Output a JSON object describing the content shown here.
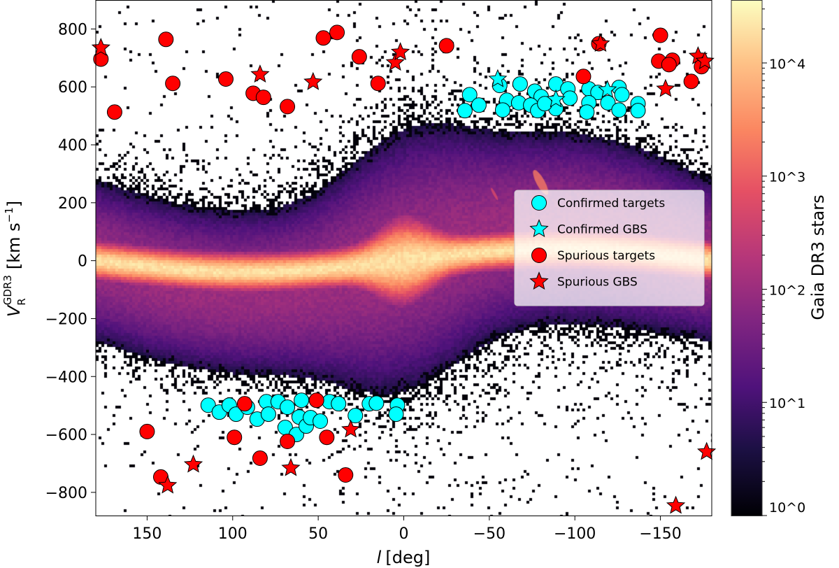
{
  "chart_data": {
    "type": "scatter",
    "background": "heatmap (2D histogram of Gaia DR3 stars, log color scale, magma colormap)",
    "xlabel": "l [deg]",
    "ylabel": "V_R^GDR3 [km s^-1]",
    "xlim": [
      180,
      -180
    ],
    "ylim": [
      -880,
      900
    ],
    "xticks": [
      150,
      100,
      50,
      0,
      -50,
      -100,
      -150
    ],
    "xtick_labels": [
      "150",
      "100",
      "50",
      "0",
      "−50",
      "−100",
      "−150"
    ],
    "yticks": [
      800,
      600,
      400,
      200,
      0,
      -200,
      -400,
      -600,
      -800
    ],
    "ytick_labels": [
      "800",
      "600",
      "400",
      "200",
      "0",
      "−200",
      "−400",
      "−600",
      "−800"
    ],
    "colorbar": {
      "label": "Gaia DR3 stars",
      "scale": "log",
      "range": [
        1,
        36000
      ],
      "ticks": [
        1,
        10,
        100,
        1000,
        10000
      ],
      "tick_labels": [
        "10^0",
        "10^1",
        "10^2",
        "10^3",
        "10^4"
      ],
      "colormap": "magma"
    },
    "legend": {
      "placement": "center-right",
      "entries": [
        "Confirmed targets",
        "Confirmed GBS",
        "Spurious targets",
        "Spurious GBS"
      ]
    },
    "series": [
      {
        "name": "Confirmed targets",
        "marker": "circle",
        "color": "#00ffff",
        "points": [
          [
            -38.5,
            573
          ],
          [
            -35.7,
            518
          ],
          [
            -43.9,
            537
          ],
          [
            -56.1,
            605
          ],
          [
            -68,
            610
          ],
          [
            -60.2,
            554
          ],
          [
            -57.8,
            520
          ],
          [
            -67.2,
            545
          ],
          [
            -76.6,
            585
          ],
          [
            -80.3,
            566
          ],
          [
            -74.2,
            537
          ],
          [
            -78.3,
            518
          ],
          [
            -88.9,
            610
          ],
          [
            -95.9,
            593
          ],
          [
            -97.1,
            561
          ],
          [
            -88.9,
            525
          ],
          [
            -108.2,
            593
          ],
          [
            -113.5,
            581
          ],
          [
            -108.2,
            545
          ],
          [
            -107,
            513
          ],
          [
            -119.3,
            545
          ],
          [
            -125.8,
            598
          ],
          [
            -127.5,
            573
          ],
          [
            -125.8,
            520
          ],
          [
            -136.9,
            542
          ],
          [
            -136.9,
            518
          ],
          [
            -82.4,
            542
          ],
          [
            114.3,
            -499
          ],
          [
            107.8,
            -523
          ],
          [
            102,
            -499
          ],
          [
            98,
            -530
          ],
          [
            91.4,
            -506
          ],
          [
            85.7,
            -547
          ],
          [
            80.3,
            -487
          ],
          [
            79.1,
            -530
          ],
          [
            73.4,
            -487
          ],
          [
            68,
            -506
          ],
          [
            69.3,
            -576
          ],
          [
            61.1,
            -540
          ],
          [
            59.8,
            -482
          ],
          [
            62.7,
            -600
          ],
          [
            57,
            -571
          ],
          [
            54.5,
            -542
          ],
          [
            48.8,
            -554
          ],
          [
            43.4,
            -487
          ],
          [
            38.1,
            -494
          ],
          [
            28.3,
            -535
          ],
          [
            20.1,
            -494
          ],
          [
            16,
            -492
          ],
          [
            3.7,
            -499
          ],
          [
            4.5,
            -530
          ]
        ]
      },
      {
        "name": "Confirmed GBS",
        "marker": "star",
        "color": "#00ffff",
        "points": [
          [
            -54.9,
            627
          ],
          [
            -88.9,
            557
          ],
          [
            -119,
            590
          ]
        ]
      },
      {
        "name": "Spurious targets",
        "marker": "circle",
        "color": "#ff0000",
        "points": [
          [
            177,
            696
          ],
          [
            139,
            764
          ],
          [
            135,
            612
          ],
          [
            169,
            513
          ],
          [
            104,
            627
          ],
          [
            88,
            578
          ],
          [
            82,
            564
          ],
          [
            68,
            532
          ],
          [
            47,
            769
          ],
          [
            39,
            788
          ],
          [
            26,
            704
          ],
          [
            15,
            612
          ],
          [
            -25,
            742
          ],
          [
            -105,
            636
          ],
          [
            -114,
            749
          ],
          [
            -150,
            778
          ],
          [
            -149,
            689
          ],
          [
            -157,
            692
          ],
          [
            -155,
            677
          ],
          [
            -168,
            619
          ],
          [
            -174,
            670
          ],
          [
            150,
            -590
          ],
          [
            99,
            -610
          ],
          [
            93,
            -494
          ],
          [
            84,
            -682
          ],
          [
            68,
            -624
          ],
          [
            51,
            -482
          ],
          [
            45,
            -610
          ],
          [
            34,
            -740
          ],
          [
            142,
            -747
          ]
        ]
      },
      {
        "name": "Spurious GBS",
        "marker": "star",
        "color": "#ff0000",
        "points": [
          [
            177,
            735
          ],
          [
            84,
            643
          ],
          [
            53,
            617
          ],
          [
            5,
            684
          ],
          [
            2,
            720
          ],
          [
            -115,
            749
          ],
          [
            -153,
            593
          ],
          [
            -172,
            706
          ],
          [
            -176,
            689
          ],
          [
            123,
            -704
          ],
          [
            138,
            -776
          ],
          [
            66,
            -716
          ],
          [
            31,
            -583
          ],
          [
            -159,
            -846
          ],
          [
            -177,
            -660
          ]
        ]
      }
    ]
  }
}
